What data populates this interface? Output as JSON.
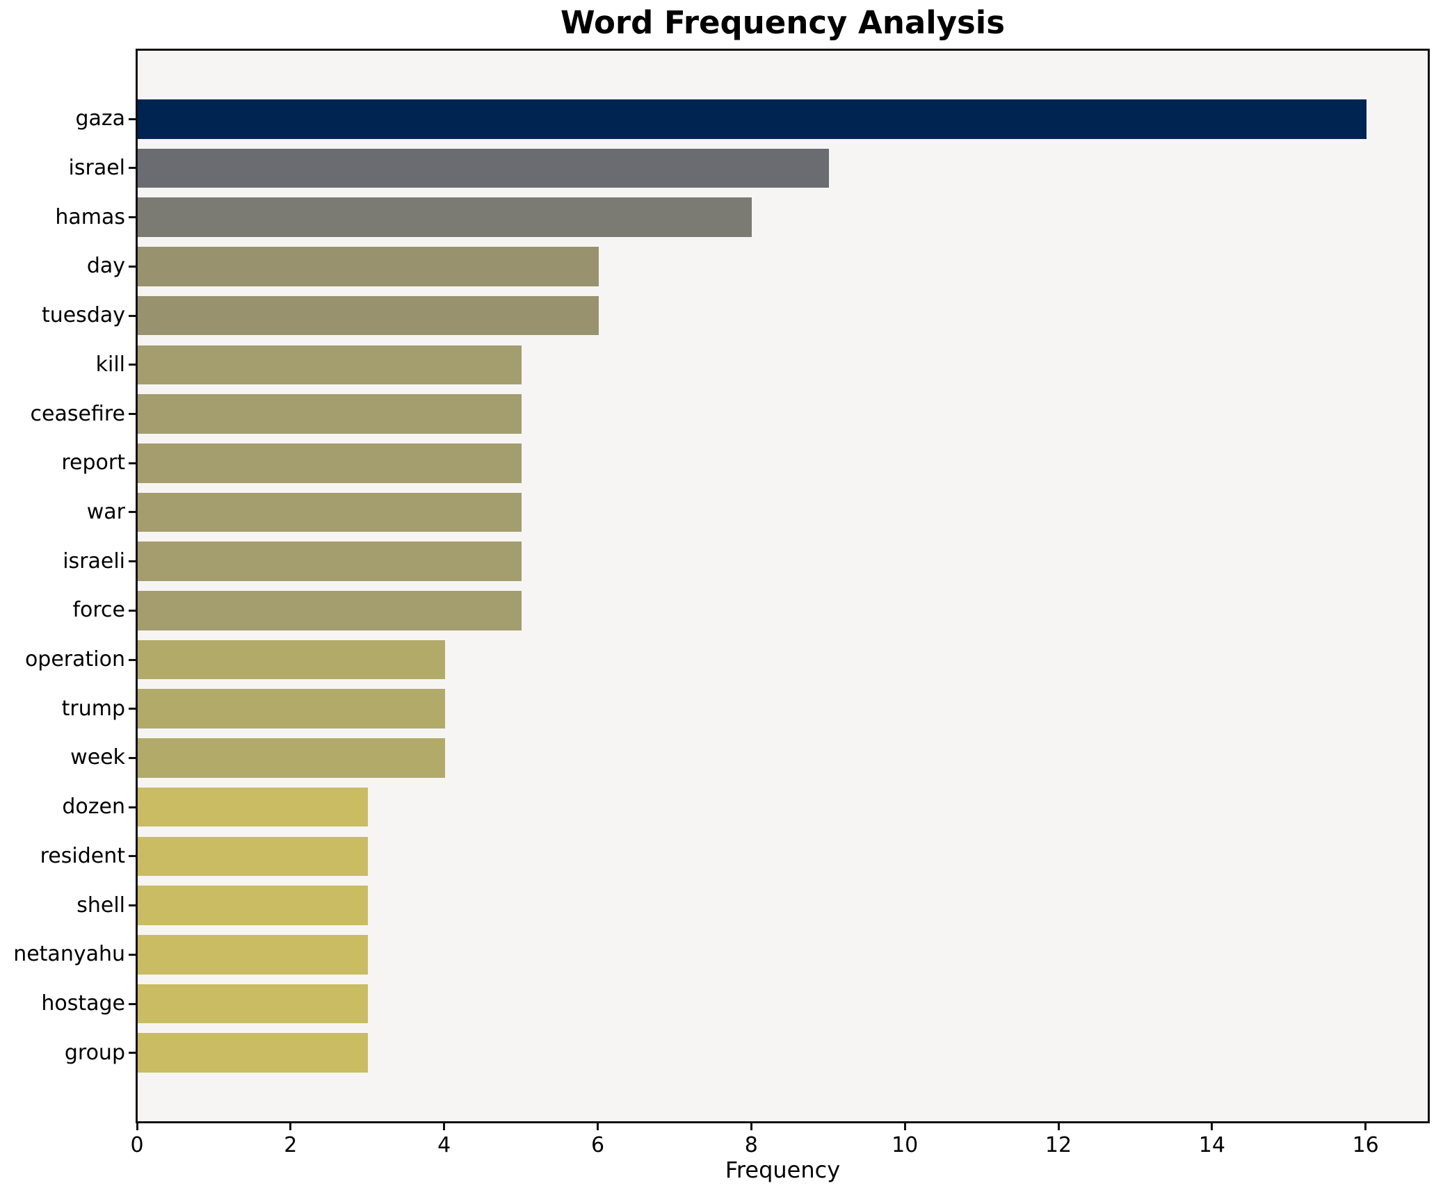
{
  "chart_data": {
    "type": "bar",
    "orientation": "horizontal",
    "title": "Word Frequency Analysis",
    "xlabel": "Frequency",
    "ylabel": "",
    "categories": [
      "gaza",
      "israel",
      "hamas",
      "day",
      "tuesday",
      "kill",
      "ceasefire",
      "report",
      "war",
      "israeli",
      "force",
      "operation",
      "trump",
      "week",
      "dozen",
      "resident",
      "shell",
      "netanyahu",
      "hostage",
      "group"
    ],
    "values": [
      16,
      9,
      8,
      6,
      6,
      5,
      5,
      5,
      5,
      5,
      5,
      4,
      4,
      4,
      3,
      3,
      3,
      3,
      3,
      3
    ],
    "bar_colors": [
      "#002452",
      "#6a6c71",
      "#7b7b74",
      "#98926f",
      "#98926f",
      "#a49d6e",
      "#a49d6e",
      "#a49d6e",
      "#a49d6e",
      "#a49d6e",
      "#a49d6e",
      "#b2aa69",
      "#b2aa69",
      "#b2aa69",
      "#c9bc62",
      "#c9bc62",
      "#c9bc62",
      "#c9bc62",
      "#c9bc62",
      "#c9bc62"
    ],
    "xlim": [
      0,
      16.8
    ],
    "xticks": [
      0,
      2,
      4,
      6,
      8,
      10,
      12,
      14,
      16
    ],
    "bar_rel_height": 0.8,
    "y_margin_units": 0.99,
    "grid": false,
    "legend": false,
    "plot_background": "#f6f5f4",
    "spine_color": "#101010",
    "figure_background": "#ffffff"
  }
}
